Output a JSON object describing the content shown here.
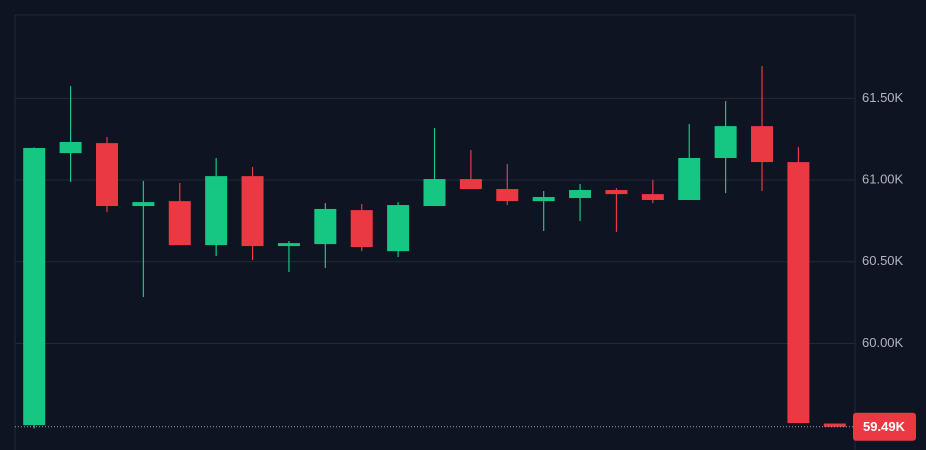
{
  "chart_data": {
    "type": "candlestick",
    "categories": [
      null,
      null,
      null,
      null,
      null,
      null,
      null,
      null,
      null,
      null,
      null,
      null,
      null,
      null,
      null,
      null,
      null,
      null,
      null,
      null,
      null,
      null,
      null
    ],
    "open": [
      59500,
      61165,
      61226,
      60841,
      60871,
      60602,
      61024,
      60596,
      60608,
      60816,
      60565,
      60841,
      61006,
      60945,
      60871,
      60890,
      60939,
      60914,
      60878,
      61135,
      61330,
      61110,
      59510
    ],
    "high": [
      61200,
      61575,
      61263,
      60994,
      60982,
      61135,
      61080,
      60627,
      60859,
      60853,
      60865,
      61318,
      61184,
      61098,
      60933,
      60976,
      60951,
      61000,
      61343,
      61483,
      61698,
      61202,
      59510
    ],
    "low": [
      59480,
      60988,
      60804,
      60284,
      60602,
      60535,
      60510,
      60437,
      60461,
      60565,
      60529,
      60841,
      60945,
      60847,
      60688,
      60749,
      60682,
      60859,
      60878,
      60920,
      60933,
      59513,
      59490
    ],
    "close": [
      61196,
      61233,
      60841,
      60865,
      60602,
      61024,
      60596,
      60614,
      60823,
      60590,
      60847,
      61006,
      60945,
      60871,
      60896,
      60939,
      60914,
      60878,
      61135,
      61330,
      61110,
      59513,
      59490
    ],
    "up_color": "#16c784",
    "down_color": "#ea3943",
    "ylim": [
      59348,
      62010
    ],
    "yticks": [
      {
        "value": 60000,
        "label": "60.00K"
      },
      {
        "value": 60500,
        "label": "60.50K"
      },
      {
        "value": 61000,
        "label": "61.00K"
      },
      {
        "value": 61500,
        "label": "61.50K"
      }
    ],
    "last_price": {
      "value": 59490,
      "label": "59.49K"
    },
    "grid": true
  }
}
